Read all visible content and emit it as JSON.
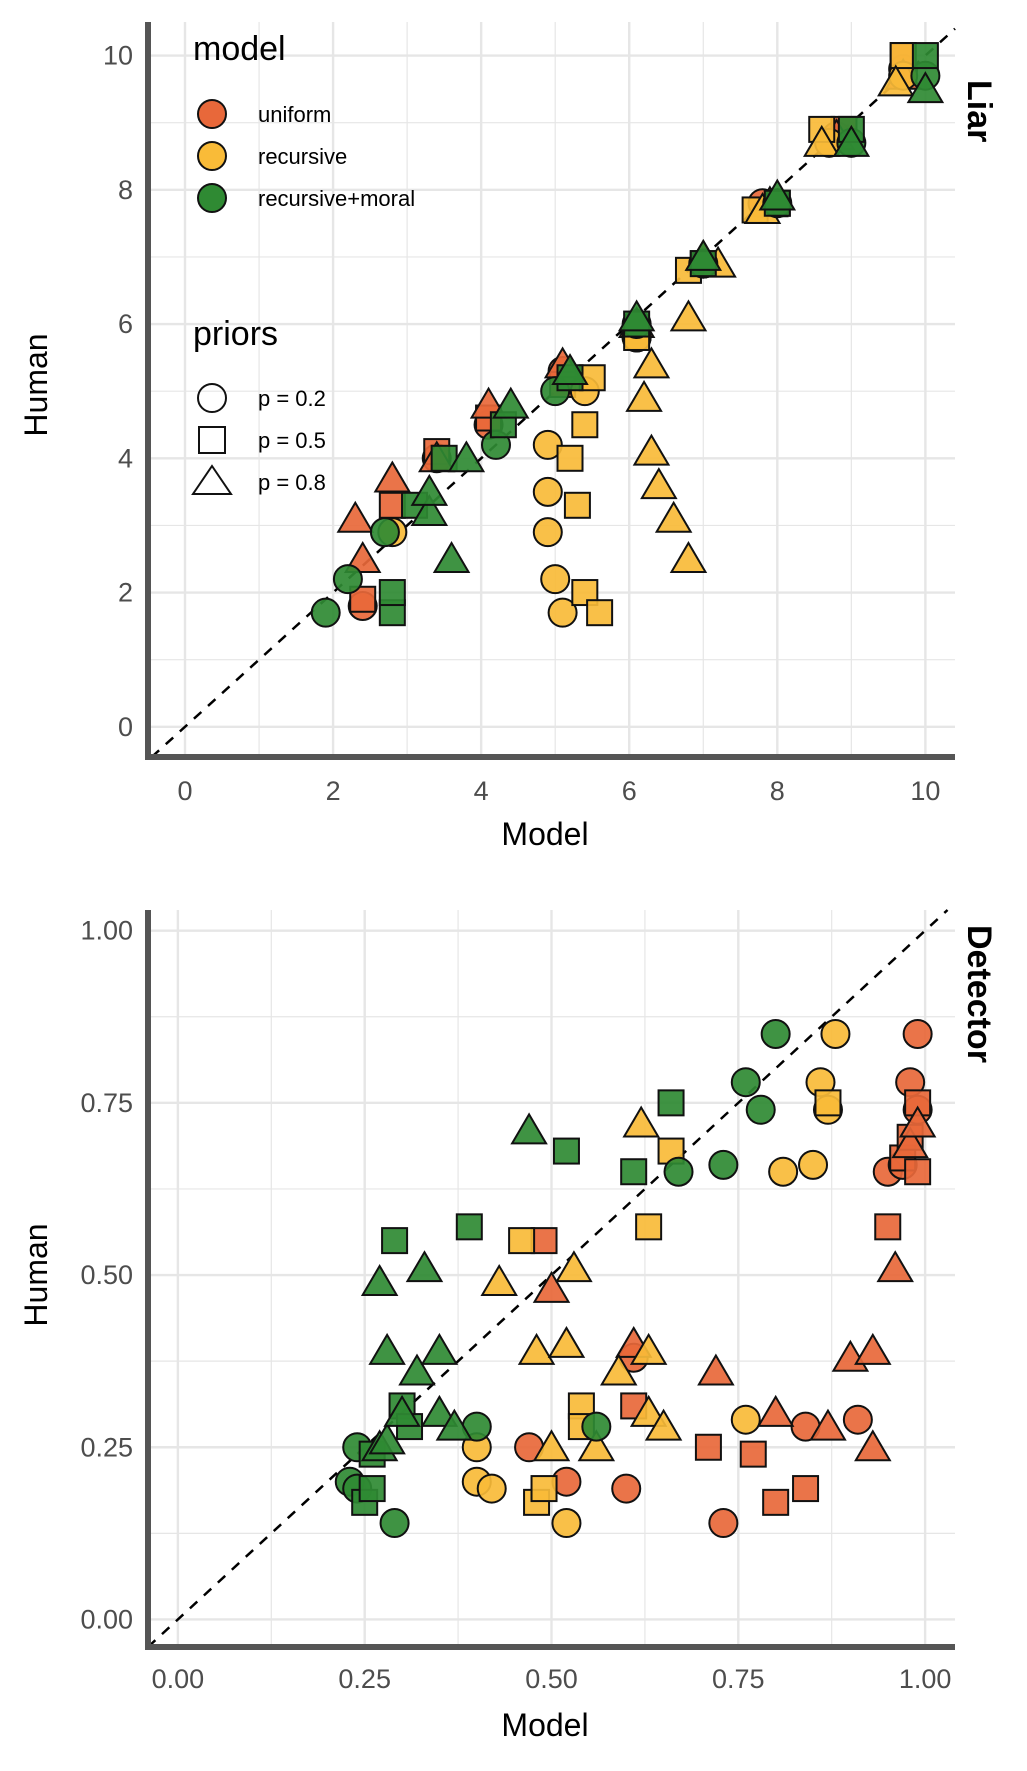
{
  "colors": {
    "uniform": "#e8683a",
    "recursive": "#f9bb38",
    "recursive+moral": "#2f8a33",
    "stroke": "#111111",
    "grid": "#e6e6e6",
    "axis": "#555555"
  },
  "legend": {
    "model_title": "model",
    "model_items": [
      "uniform",
      "recursive",
      "recursive+moral"
    ],
    "priors_title": "priors",
    "priors_items": [
      {
        "label": "p = 0.2",
        "shape": "circle-icon"
      },
      {
        "label": "p = 0.5",
        "shape": "square-icon"
      },
      {
        "label": "p = 0.8",
        "shape": "triangle-icon"
      }
    ]
  },
  "chart_data": [
    {
      "type": "scatter",
      "panel": "Liar",
      "xlabel": "Model",
      "ylabel": "Human",
      "xlim": [
        -0.5,
        10.4
      ],
      "ylim": [
        -0.45,
        10.5
      ],
      "xticks": [
        "0",
        "2",
        "4",
        "6",
        "8",
        "10"
      ],
      "yticks": [
        "0",
        "2",
        "4",
        "6",
        "8",
        "10"
      ],
      "reference_line": "y = x (dashed)",
      "grid": true,
      "series": [
        {
          "model": "uniform",
          "prior": "p = 0.2",
          "points": [
            [
              2.4,
              1.8
            ],
            [
              3.4,
              4.0
            ],
            [
              4.1,
              4.5
            ],
            [
              5.1,
              5.3
            ],
            [
              6.1,
              5.8
            ],
            [
              7.0,
              6.9
            ],
            [
              7.8,
              7.8
            ],
            [
              8.8,
              8.8
            ],
            [
              9.7,
              9.8
            ]
          ]
        },
        {
          "model": "uniform",
          "prior": "p = 0.5",
          "points": [
            [
              2.4,
              1.9
            ],
            [
              2.8,
              3.3
            ],
            [
              3.4,
              4.1
            ],
            [
              4.1,
              4.6
            ],
            [
              5.1,
              5.1
            ],
            [
              6.1,
              5.9
            ],
            [
              7.0,
              6.9
            ],
            [
              8.0,
              7.8
            ],
            [
              8.9,
              8.9
            ],
            [
              9.7,
              10.0
            ]
          ]
        },
        {
          "model": "uniform",
          "prior": "p = 0.8",
          "points": [
            [
              2.4,
              2.5
            ],
            [
              2.8,
              3.7
            ],
            [
              3.4,
              4.0
            ],
            [
              4.1,
              4.8
            ],
            [
              5.1,
              5.4
            ],
            [
              6.1,
              6.0
            ],
            [
              7.0,
              7.0
            ],
            [
              7.9,
              7.8
            ],
            [
              8.8,
              8.8
            ],
            [
              9.7,
              9.7
            ],
            [
              2.3,
              3.1
            ]
          ]
        },
        {
          "model": "recursive",
          "prior": "p = 0.2",
          "points": [
            [
              2.8,
              2.9
            ],
            [
              4.9,
              4.2
            ],
            [
              4.9,
              3.5
            ],
            [
              4.9,
              2.9
            ],
            [
              5.0,
              2.2
            ],
            [
              5.1,
              1.7
            ],
            [
              5.4,
              5.0
            ],
            [
              6.1,
              5.8
            ],
            [
              7.0,
              6.9
            ],
            [
              8.7,
              8.7
            ],
            [
              9.7,
              9.7
            ]
          ]
        },
        {
          "model": "recursive",
          "prior": "p = 0.5",
          "points": [
            [
              5.2,
              4.0
            ],
            [
              5.3,
              3.3
            ],
            [
              5.4,
              4.5
            ],
            [
              5.4,
              2.0
            ],
            [
              5.5,
              5.2
            ],
            [
              5.6,
              1.7
            ],
            [
              6.1,
              5.8
            ],
            [
              6.8,
              6.8
            ],
            [
              7.7,
              7.7
            ],
            [
              8.6,
              8.9
            ],
            [
              9.7,
              10.0
            ]
          ]
        },
        {
          "model": "recursive",
          "prior": "p = 0.8",
          "points": [
            [
              6.2,
              4.9
            ],
            [
              6.3,
              5.4
            ],
            [
              6.3,
              4.1
            ],
            [
              6.4,
              3.6
            ],
            [
              6.6,
              3.1
            ],
            [
              6.8,
              2.5
            ],
            [
              6.8,
              6.1
            ],
            [
              7.2,
              6.9
            ],
            [
              7.8,
              7.7
            ],
            [
              8.6,
              8.7
            ],
            [
              9.6,
              9.6
            ]
          ]
        },
        {
          "model": "recursive+moral",
          "prior": "p = 0.2",
          "points": [
            [
              1.9,
              1.7
            ],
            [
              2.2,
              2.2
            ],
            [
              2.7,
              2.9
            ],
            [
              4.2,
              4.2
            ],
            [
              5.0,
              5.0
            ],
            [
              6.1,
              6.0
            ],
            [
              7.0,
              6.9
            ],
            [
              8.0,
              7.8
            ],
            [
              9.0,
              8.7
            ],
            [
              10.0,
              9.7
            ]
          ]
        },
        {
          "model": "recursive+moral",
          "prior": "p = 0.5",
          "points": [
            [
              2.8,
              1.7
            ],
            [
              2.8,
              2.0
            ],
            [
              3.1,
              3.3
            ],
            [
              3.5,
              4.0
            ],
            [
              4.3,
              4.5
            ],
            [
              5.2,
              5.2
            ],
            [
              6.1,
              6.0
            ],
            [
              7.0,
              6.9
            ],
            [
              8.0,
              7.8
            ],
            [
              9.0,
              8.9
            ],
            [
              10.0,
              10.0
            ]
          ]
        },
        {
          "model": "recursive+moral",
          "prior": "p = 0.8",
          "points": [
            [
              3.3,
              3.2
            ],
            [
              3.3,
              3.5
            ],
            [
              3.6,
              2.5
            ],
            [
              3.8,
              4.0
            ],
            [
              4.4,
              4.8
            ],
            [
              5.2,
              5.3
            ],
            [
              6.1,
              6.1
            ],
            [
              7.0,
              7.0
            ],
            [
              8.0,
              7.9
            ],
            [
              9.0,
              8.7
            ],
            [
              10.0,
              9.5
            ]
          ]
        }
      ]
    },
    {
      "type": "scatter",
      "panel": "Detector",
      "xlabel": "Model",
      "ylabel": "Human",
      "xlim": [
        -0.04,
        1.04
      ],
      "ylim": [
        -0.04,
        1.03
      ],
      "xticks": [
        "0.00",
        "0.25",
        "0.50",
        "0.75",
        "1.00"
      ],
      "yticks": [
        "0.00",
        "0.25",
        "0.50",
        "0.75",
        "1.00"
      ],
      "reference_line": "y = x (dashed)",
      "grid": true,
      "series": [
        {
          "model": "uniform",
          "prior": "p = 0.2",
          "points": [
            [
              0.47,
              0.25
            ],
            [
              0.52,
              0.2
            ],
            [
              0.6,
              0.19
            ],
            [
              0.61,
              0.38
            ],
            [
              0.73,
              0.14
            ],
            [
              0.84,
              0.28
            ],
            [
              0.91,
              0.29
            ],
            [
              0.95,
              0.65
            ],
            [
              0.97,
              0.66
            ],
            [
              0.98,
              0.78
            ],
            [
              0.99,
              0.74
            ],
            [
              0.99,
              0.85
            ]
          ]
        },
        {
          "model": "uniform",
          "prior": "p = 0.5",
          "points": [
            [
              0.49,
              0.55
            ],
            [
              0.61,
              0.31
            ],
            [
              0.71,
              0.25
            ],
            [
              0.77,
              0.24
            ],
            [
              0.8,
              0.17
            ],
            [
              0.84,
              0.19
            ],
            [
              0.95,
              0.57
            ],
            [
              0.97,
              0.67
            ],
            [
              0.98,
              0.7
            ],
            [
              0.99,
              0.65
            ],
            [
              0.99,
              0.75
            ]
          ]
        },
        {
          "model": "uniform",
          "prior": "p = 0.8",
          "points": [
            [
              0.5,
              0.48
            ],
            [
              0.61,
              0.4
            ],
            [
              0.72,
              0.36
            ],
            [
              0.8,
              0.3
            ],
            [
              0.87,
              0.28
            ],
            [
              0.9,
              0.38
            ],
            [
              0.93,
              0.39
            ],
            [
              0.93,
              0.25
            ],
            [
              0.96,
              0.51
            ],
            [
              0.98,
              0.69
            ],
            [
              0.99,
              0.72
            ]
          ]
        },
        {
          "model": "recursive",
          "prior": "p = 0.2",
          "points": [
            [
              0.4,
              0.25
            ],
            [
              0.4,
              0.2
            ],
            [
              0.42,
              0.19
            ],
            [
              0.52,
              0.14
            ],
            [
              0.76,
              0.29
            ],
            [
              0.81,
              0.65
            ],
            [
              0.85,
              0.66
            ],
            [
              0.86,
              0.78
            ],
            [
              0.87,
              0.74
            ],
            [
              0.88,
              0.85
            ]
          ]
        },
        {
          "model": "recursive",
          "prior": "p = 0.5",
          "points": [
            [
              0.46,
              0.55
            ],
            [
              0.48,
              0.17
            ],
            [
              0.49,
              0.19
            ],
            [
              0.54,
              0.31
            ],
            [
              0.54,
              0.28
            ],
            [
              0.63,
              0.57
            ],
            [
              0.66,
              0.68
            ],
            [
              0.87,
              0.75
            ]
          ]
        },
        {
          "model": "recursive",
          "prior": "p = 0.8",
          "points": [
            [
              0.43,
              0.49
            ],
            [
              0.48,
              0.39
            ],
            [
              0.5,
              0.25
            ],
            [
              0.52,
              0.4
            ],
            [
              0.53,
              0.51
            ],
            [
              0.56,
              0.25
            ],
            [
              0.59,
              0.36
            ],
            [
              0.62,
              0.72
            ],
            [
              0.63,
              0.39
            ],
            [
              0.63,
              0.3
            ],
            [
              0.65,
              0.28
            ]
          ]
        },
        {
          "model": "recursive+moral",
          "prior": "p = 0.2",
          "points": [
            [
              0.23,
              0.2
            ],
            [
              0.24,
              0.25
            ],
            [
              0.24,
              0.19
            ],
            [
              0.29,
              0.14
            ],
            [
              0.4,
              0.28
            ],
            [
              0.56,
              0.28
            ],
            [
              0.67,
              0.65
            ],
            [
              0.73,
              0.66
            ],
            [
              0.76,
              0.78
            ],
            [
              0.78,
              0.74
            ],
            [
              0.8,
              0.85
            ]
          ]
        },
        {
          "model": "recursive+moral",
          "prior": "p = 0.5",
          "points": [
            [
              0.25,
              0.17
            ],
            [
              0.26,
              0.24
            ],
            [
              0.26,
              0.19
            ],
            [
              0.29,
              0.55
            ],
            [
              0.3,
              0.31
            ],
            [
              0.31,
              0.28
            ],
            [
              0.39,
              0.57
            ],
            [
              0.52,
              0.68
            ],
            [
              0.61,
              0.65
            ],
            [
              0.66,
              0.75
            ]
          ]
        },
        {
          "model": "recursive+moral",
          "prior": "p = 0.8",
          "points": [
            [
              0.27,
              0.25
            ],
            [
              0.27,
              0.49
            ],
            [
              0.28,
              0.39
            ],
            [
              0.28,
              0.26
            ],
            [
              0.3,
              0.3
            ],
            [
              0.32,
              0.36
            ],
            [
              0.33,
              0.51
            ],
            [
              0.35,
              0.39
            ],
            [
              0.35,
              0.3
            ],
            [
              0.37,
              0.28
            ],
            [
              0.47,
              0.71
            ]
          ]
        }
      ]
    }
  ]
}
